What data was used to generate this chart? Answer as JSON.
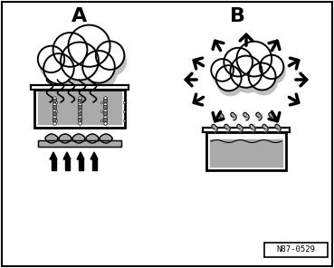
{
  "label_A": "A",
  "label_B": "B",
  "label_code": "N87-0529",
  "bg_color": "#ffffff",
  "border_color": "#000000",
  "gray_color": "#aaaaaa",
  "dark_gray": "#707070",
  "light_gray": "#cccccc",
  "cloud_shadow": "#c0c0c0"
}
